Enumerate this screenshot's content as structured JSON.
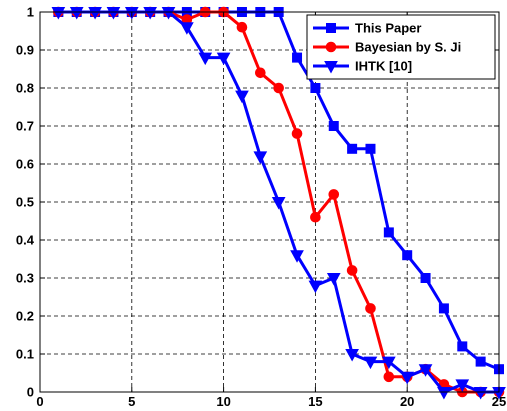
{
  "chart_data": {
    "type": "line",
    "title": "",
    "xlabel": "",
    "ylabel": "",
    "xlim": [
      0,
      25
    ],
    "ylim": [
      0,
      1
    ],
    "xticks": [
      0,
      5,
      10,
      15,
      20,
      25
    ],
    "yticks": [
      0,
      0.1,
      0.2,
      0.3,
      0.4,
      0.5,
      0.6,
      0.7,
      0.8,
      0.9,
      1
    ],
    "xtick_labels": [
      "0",
      "5",
      "10",
      "15",
      "20",
      "25"
    ],
    "ytick_labels": [
      "0",
      "0.1",
      "0.2",
      "0.3",
      "0.4",
      "0.5",
      "0.6",
      "0.7",
      "0.8",
      "0.9",
      "1"
    ],
    "grid": true,
    "grid_style": "dashed",
    "legend_position": "top-right",
    "series": [
      {
        "name": "This Paper",
        "color": "#0000ff",
        "marker": "square",
        "x": [
          1,
          2,
          3,
          4,
          5,
          6,
          7,
          8,
          9,
          10,
          11,
          12,
          13,
          14,
          15,
          16,
          17,
          18,
          19,
          20,
          21,
          22,
          23,
          24,
          25
        ],
        "y": [
          1,
          1,
          1,
          1,
          1,
          1,
          1,
          1,
          1,
          1,
          1,
          1,
          1,
          0.88,
          0.8,
          0.7,
          0.64,
          0.64,
          0.42,
          0.36,
          0.3,
          0.22,
          0.12,
          0.08,
          0.06
        ]
      },
      {
        "name": "Bayesian  by S. Ji",
        "color": "#ff0000",
        "marker": "circle",
        "x": [
          1,
          2,
          3,
          4,
          5,
          6,
          7,
          8,
          9,
          10,
          11,
          12,
          13,
          14,
          15,
          16,
          17,
          18,
          19,
          20,
          21,
          22,
          23,
          24,
          25
        ],
        "y": [
          1,
          1,
          1,
          1,
          1,
          1,
          1,
          0.98,
          1,
          1,
          0.96,
          0.84,
          0.8,
          0.68,
          0.46,
          0.52,
          0.32,
          0.22,
          0.04,
          0.04,
          0.06,
          0.02,
          0,
          0,
          0
        ]
      },
      {
        "name": "IHTK [10]",
        "color": "#0000ff",
        "marker": "triangle-down",
        "x": [
          1,
          2,
          3,
          4,
          5,
          6,
          7,
          8,
          9,
          10,
          11,
          12,
          13,
          14,
          15,
          16,
          17,
          18,
          19,
          20,
          21,
          22,
          23,
          24,
          25
        ],
        "y": [
          1,
          1,
          1,
          1,
          1,
          1,
          1,
          0.96,
          0.88,
          0.88,
          0.78,
          0.62,
          0.5,
          0.36,
          0.28,
          0.3,
          0.1,
          0.08,
          0.08,
          0.04,
          0.06,
          0,
          0.02,
          0,
          0
        ]
      }
    ]
  }
}
